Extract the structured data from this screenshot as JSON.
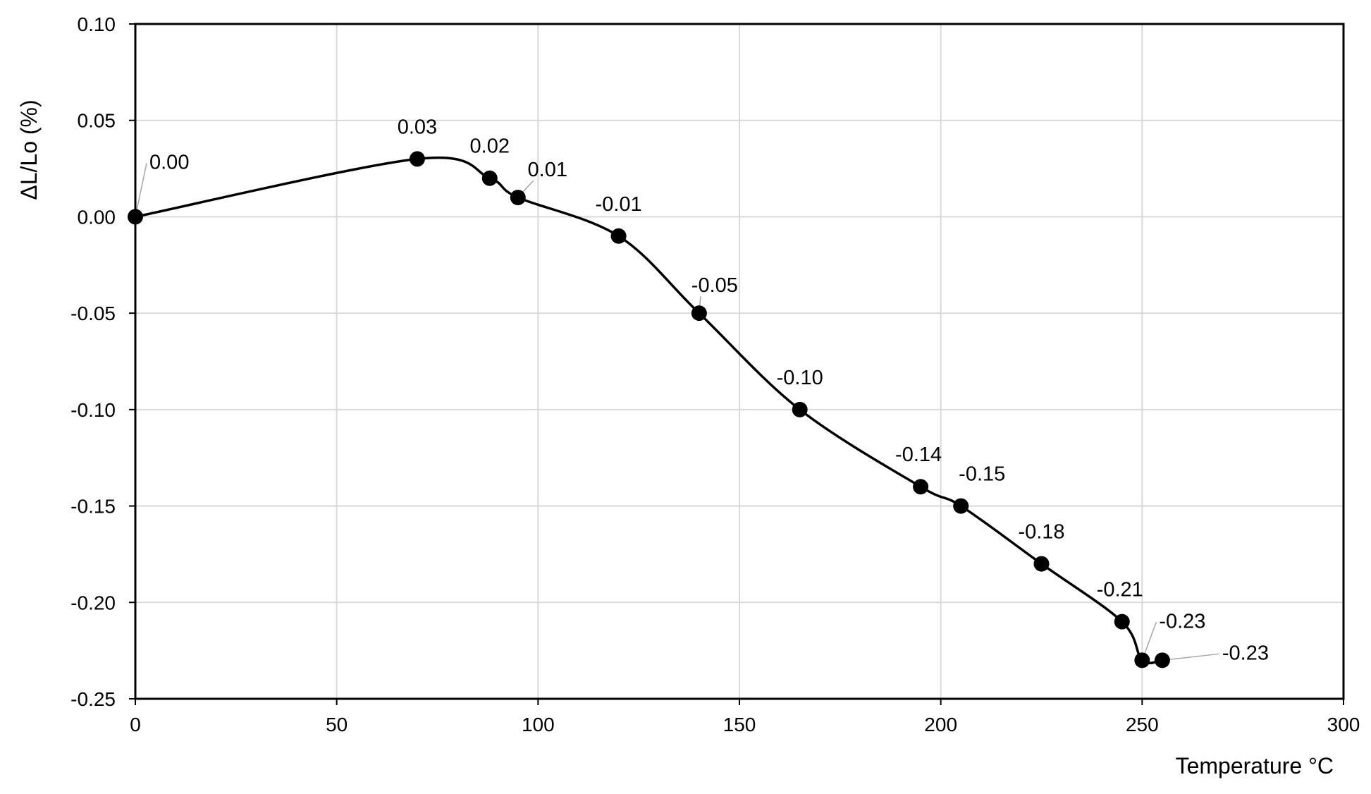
{
  "chart_data": {
    "type": "line",
    "title": "",
    "xlabel": "Temperature °C",
    "ylabel": "ΔL/Lo (%)",
    "xlim": [
      0,
      300
    ],
    "ylim": [
      -0.25,
      0.1
    ],
    "x_ticks": [
      0,
      50,
      100,
      150,
      200,
      250,
      300
    ],
    "x_tick_labels": [
      "0",
      "50",
      "100",
      "150",
      "200",
      "250",
      "300"
    ],
    "y_ticks": [
      0.1,
      0.05,
      0.0,
      -0.05,
      -0.1,
      -0.15,
      -0.2,
      -0.25
    ],
    "y_tick_labels": [
      "0.10",
      "0.05",
      "0.00",
      "-0.05",
      "-0.10",
      "-0.15",
      "-0.20",
      "-0.25"
    ],
    "grid": true,
    "legend": "none",
    "smooth": true,
    "line_color": "#000000",
    "marker_color": "#000000",
    "grid_color": "#d9d9d9",
    "leader_color": "#a6a6a6",
    "series": [
      {
        "x": [
          0,
          70,
          88,
          95,
          120,
          140,
          165,
          195,
          205,
          225,
          245,
          250,
          255
        ],
        "y": [
          0.0,
          0.03,
          0.02,
          0.01,
          -0.01,
          -0.05,
          -0.1,
          -0.14,
          -0.15,
          -0.18,
          -0.21,
          -0.23,
          -0.23
        ],
        "data_labels": [
          "0.00",
          "0.03",
          "0.02",
          "0.01",
          "-0.01",
          "-0.05",
          "-0.10",
          "-0.14",
          "-0.15",
          "-0.18",
          "-0.21",
          "-0.23",
          "-0.23"
        ]
      }
    ]
  }
}
